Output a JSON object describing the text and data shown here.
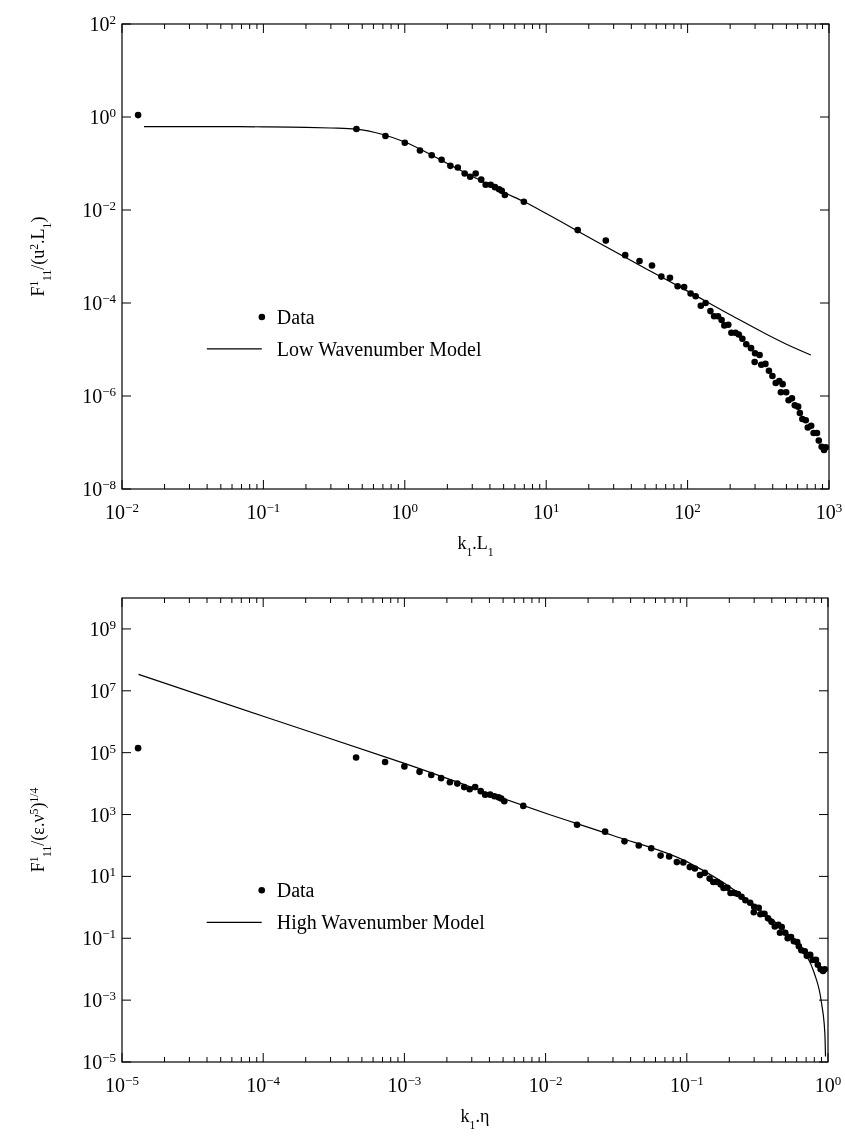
{
  "chart_data": [
    {
      "type": "scatter",
      "xlabel": "k$_{1}$.L$_{1}$",
      "ylabel": "F$^{1}$$_{11}$/(u$^{2}$.L$_{1}$)",
      "log": "xy",
      "grid": false,
      "legend": "center",
      "line_style": "solid",
      "xlim": [
        0.01,
        1000
      ],
      "ylim": [
        1e-08,
        100
      ],
      "xticks": [
        {
          "value": 0.01,
          "label": "10$^{−2}$"
        },
        {
          "value": 0.1,
          "label": "10$^{−1}$"
        },
        {
          "value": 1,
          "label": "10$^{0}$"
        },
        {
          "value": 10,
          "label": "10$^{1}$"
        },
        {
          "value": 100,
          "label": "10$^{2}$"
        },
        {
          "value": 1000,
          "label": "10$^{3}$"
        }
      ],
      "yticks": [
        {
          "value": 1e-08,
          "label": "10$^{−8}$"
        },
        {
          "value": 1e-06,
          "label": "10$^{−6}$"
        },
        {
          "value": 0.0001,
          "label": "10$^{−4}$"
        },
        {
          "value": 0.01,
          "label": "10$^{−2}$"
        },
        {
          "value": 1,
          "label": "10$^{0}$"
        },
        {
          "value": 100,
          "label": "10$^{2}$"
        }
      ],
      "series": [
        {
          "name": "Data",
          "marker": "circle",
          "color": "#000000",
          "x": [
            0.013,
            0.455,
            0.73,
            1.0,
            1.28,
            1.55,
            1.82,
            2.1,
            2.37,
            2.65,
            2.9,
            3.17,
            3.47,
            3.73,
            4.05,
            4.34,
            4.64,
            4.85,
            5.1,
            6.95,
            16.7,
            26.4,
            36.2,
            45.7,
            56,
            65.2,
            75,
            85,
            94.5,
            105,
            114,
            124,
            134,
            145,
            154,
            164,
            174,
            182,
            194,
            204,
            218,
            230,
            244,
            260,
            281,
            298,
            300,
            323,
            332,
            355,
            376,
            398,
            420,
            445,
            457,
            470,
            498,
            518,
            547,
            573,
            605,
            622,
            648,
            685,
            708,
            748,
            778,
            822,
            847,
            887,
            922,
            949
          ],
          "values": [
            1.1,
            0.55,
            0.39,
            0.28,
            0.19,
            0.15,
            0.12,
            0.089,
            0.082,
            0.061,
            0.052,
            0.061,
            0.045,
            0.035,
            0.035,
            0.031,
            0.028,
            0.026,
            0.021,
            0.015,
            0.0037,
            0.0022,
            0.00107,
            0.0008,
            0.00064,
            0.00037,
            0.00035,
            0.00023,
            0.00022,
            0.00016,
            0.00014,
            8.7e-05,
            0.0001,
            6.7e-05,
            5.2e-05,
            5.2e-05,
            4.3e-05,
            3.3e-05,
            3.4e-05,
            2.3e-05,
            2.3e-05,
            2.1e-05,
            1.7e-05,
            1.3e-05,
            1.07e-05,
            5.4e-06,
            8.3e-06,
            7.6e-06,
            4.7e-06,
            4.9e-06,
            3.5e-06,
            2.7e-06,
            1.9e-06,
            2.1e-06,
            1.2e-06,
            1.8e-06,
            1.2e-06,
            8.1e-07,
            8.9e-07,
            6.3e-07,
            5.9e-07,
            4.3e-07,
            3.2e-07,
            3e-07,
            2.1e-07,
            2.3e-07,
            1.6e-07,
            1.6e-07,
            1.1e-07,
            8.1e-08,
            6.9e-08,
            7.9e-08
          ]
        },
        {
          "name": "Low Wavenumber Model",
          "type": "line",
          "color": "#000000",
          "x": [
            0.0143,
            0.05,
            0.1,
            0.2,
            0.3,
            0.455,
            0.7,
            1,
            1.5,
            2,
            3,
            5,
            7,
            10,
            20,
            50,
            100,
            200,
            500,
            745
          ],
          "values": [
            0.62,
            0.62,
            0.615,
            0.6,
            0.58,
            0.55,
            0.42,
            0.29,
            0.16,
            0.1,
            0.053,
            0.024,
            0.015,
            0.0084,
            0.0026,
            0.00056,
            0.00018,
            5.6e-05,
            1.3e-05,
            7.6e-06
          ]
        }
      ]
    },
    {
      "type": "scatter",
      "xlabel": "k$_{1}$.η",
      "ylabel": "F$^{1}$$_{11}$/(ε.ν$^{5}$)$^{1/4}$",
      "log": "xy",
      "grid": false,
      "legend": "center",
      "line_style": "solid",
      "xlim": [
        1e-05,
        1
      ],
      "ylim": [
        1e-05,
        10000000000.0
      ],
      "xticks": [
        {
          "value": 1e-05,
          "label": "10$^{−5}$"
        },
        {
          "value": 0.0001,
          "label": "10$^{−4}$"
        },
        {
          "value": 0.001,
          "label": "10$^{−3}$"
        },
        {
          "value": 0.01,
          "label": "10$^{−2}$"
        },
        {
          "value": 0.1,
          "label": "10$^{−1}$"
        },
        {
          "value": 1,
          "label": "10$^{0}$"
        }
      ],
      "yticks": [
        {
          "value": 1e-05,
          "label": "10$^{−5}$"
        },
        {
          "value": 0.001,
          "label": "10$^{−3}$"
        },
        {
          "value": 0.1,
          "label": "10$^{−1}$"
        },
        {
          "value": 10,
          "label": "10$^{1}$"
        },
        {
          "value": 1000,
          "label": "10$^{3}$"
        },
        {
          "value": 100000.0,
          "label": "10$^{5}$"
        },
        {
          "value": 10000000.0,
          "label": "10$^{7}$"
        },
        {
          "value": 1000000000.0,
          "label": "10$^{9}$"
        }
      ],
      "series": [
        {
          "name": "Data",
          "marker": "circle",
          "color": "#000000",
          "x": [
            1.3e-05,
            0.000455,
            0.00073,
            0.001,
            0.00128,
            0.00155,
            0.00182,
            0.0021,
            0.00237,
            0.00265,
            0.0029,
            0.00317,
            0.00347,
            0.00373,
            0.00405,
            0.00434,
            0.00464,
            0.00485,
            0.0051,
            0.00695,
            0.0167,
            0.0264,
            0.0362,
            0.0457,
            0.056,
            0.0652,
            0.075,
            0.085,
            0.0945,
            0.105,
            0.114,
            0.124,
            0.134,
            0.145,
            0.154,
            0.164,
            0.174,
            0.182,
            0.194,
            0.204,
            0.218,
            0.23,
            0.244,
            0.26,
            0.281,
            0.298,
            0.3,
            0.323,
            0.332,
            0.355,
            0.376,
            0.398,
            0.42,
            0.445,
            0.457,
            0.47,
            0.498,
            0.518,
            0.547,
            0.573,
            0.605,
            0.622,
            0.648,
            0.685,
            0.708,
            0.748,
            0.778,
            0.822,
            0.847,
            0.887,
            0.922,
            0.949
          ],
          "values": [
            140000.0,
            70000.0,
            50000.0,
            36000.0,
            24000.0,
            19000.0,
            15000.0,
            11000.0,
            10000.0,
            7700.0,
            6600.0,
            7700.0,
            5700.0,
            4400.0,
            4400.0,
            3900.0,
            3600.0,
            3300.0,
            2700.0,
            1900.0,
            470,
            280,
            136,
            100,
            81,
            47,
            44,
            29,
            28,
            20,
            18,
            11,
            13,
            8.5,
            6.6,
            6.6,
            5.5,
            4.2,
            4.3,
            2.9,
            2.9,
            2.7,
            2.2,
            1.7,
            1.4,
            0.69,
            1.05,
            0.97,
            0.6,
            0.62,
            0.44,
            0.34,
            0.24,
            0.27,
            0.15,
            0.23,
            0.15,
            0.1,
            0.11,
            0.08,
            0.075,
            0.055,
            0.041,
            0.038,
            0.027,
            0.029,
            0.02,
            0.02,
            0.014,
            0.01,
            0.0088,
            0.01
          ]
        },
        {
          "name": "High Wavenumber Model",
          "type": "line",
          "color": "#000000",
          "x": [
            1.31e-05,
            0.0001,
            0.001,
            0.01,
            0.03,
            0.1,
            0.3,
            0.6,
            0.7,
            0.8,
            0.9,
            0.95,
            0.96
          ],
          "values": [
            34000000.0,
            1500000.0,
            45000.0,
            1100,
            210,
            30,
            1.2,
            0.069,
            0.029,
            0.0074,
            0.0008,
            8.5e-05,
            1.5e-05
          ]
        }
      ]
    }
  ]
}
